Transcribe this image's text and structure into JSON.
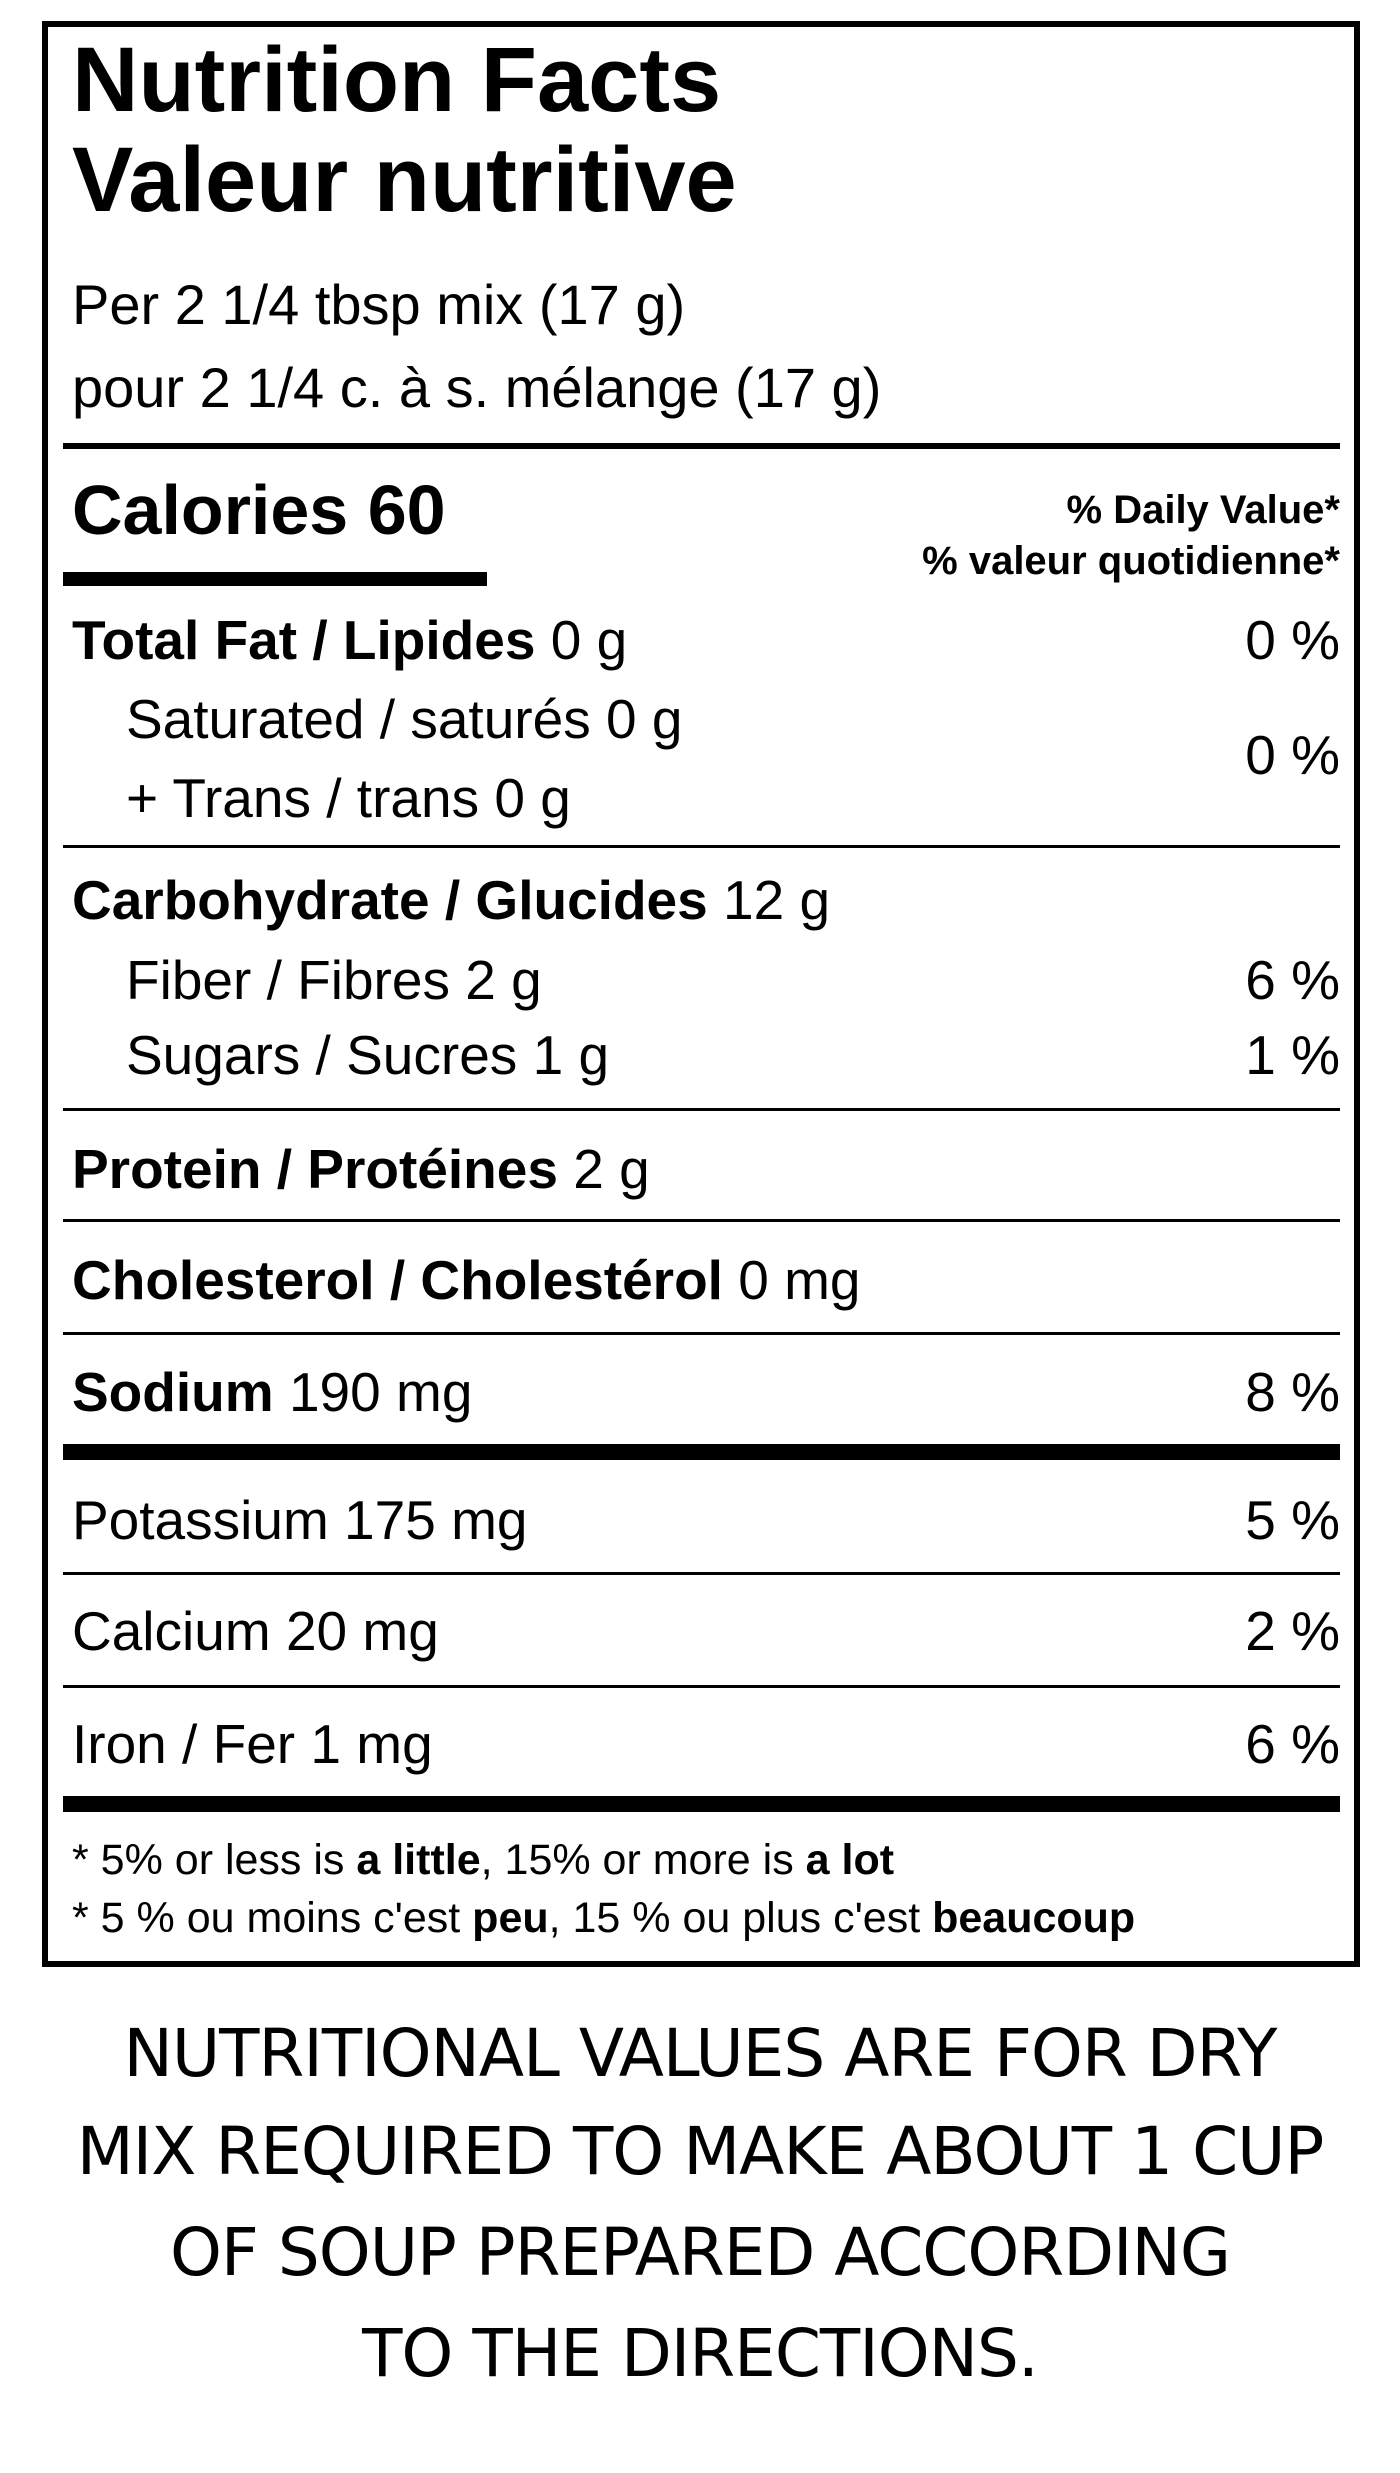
{
  "title": {
    "en": "Nutrition Facts",
    "fr": "Valeur nutritive"
  },
  "serving": {
    "en": "Per 2 1/4 tbsp mix (17 g)",
    "fr": "pour 2 1/4 c. à s. mélange (17 g)"
  },
  "calories": {
    "label": "Calories",
    "value": "60"
  },
  "daily_value_header": {
    "en": "% Daily Value*",
    "fr": "% valeur quotidienne*"
  },
  "nutrients": [
    {
      "label": "Total Fat / Lipides",
      "amount": "0 g",
      "dv": "0 %"
    },
    {
      "label": "Saturated / saturés",
      "amount": "0 g"
    },
    {
      "label": "+ Trans / trans",
      "amount": "0 g",
      "dv": "0 %"
    },
    {
      "label": "Carbohydrate / Glucides",
      "amount": "12 g"
    },
    {
      "label": "Fiber / Fibres",
      "amount": "2 g",
      "dv": "6 %"
    },
    {
      "label": "Sugars / Sucres",
      "amount": "1 g",
      "dv": "1 %"
    },
    {
      "label": "Protein / Protéines",
      "amount": "2 g"
    },
    {
      "label": "Cholesterol / Cholestérol",
      "amount": "0 mg"
    },
    {
      "label": "Sodium",
      "amount": "190 mg",
      "dv": "8 %"
    },
    {
      "label": "Potassium",
      "amount": "175 mg",
      "dv": "5 %"
    },
    {
      "label": "Calcium",
      "amount": "20 mg",
      "dv": "2 %"
    },
    {
      "label": "Iron / Fer",
      "amount": "1 mg",
      "dv": "6 %"
    }
  ],
  "footnote": {
    "en": {
      "p1": "* 5% or less is ",
      "b1": "a little",
      "p2": ", 15% or more is ",
      "b2": "a lot"
    },
    "fr": {
      "p1": "* 5 % ou moins c'est ",
      "b1": "peu",
      "p2": ", 15 % ou plus c'est ",
      "b2": "beaucoup"
    }
  },
  "note_lines": [
    "NUTRITIONAL VALUES ARE FOR DRY",
    "MIX REQUIRED TO MAKE ABOUT 1 CUP",
    "OF SOUP PREPARED ACCORDING",
    "TO THE DIRECTIONS."
  ]
}
